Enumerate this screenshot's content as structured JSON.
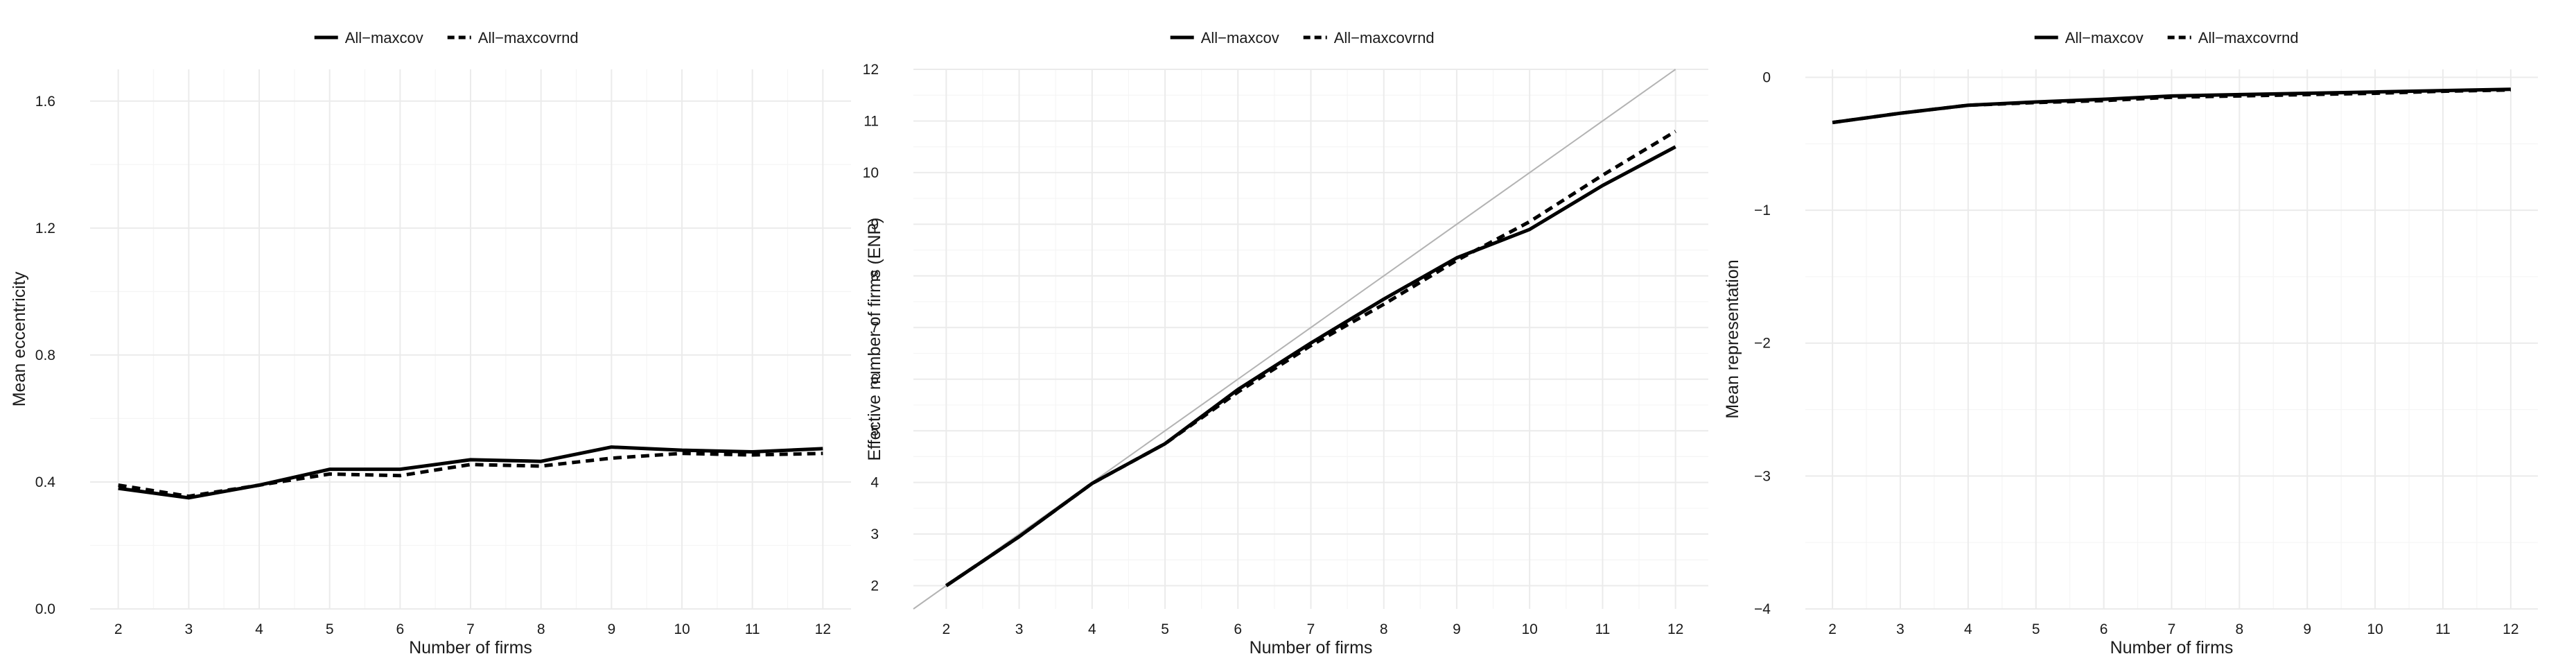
{
  "chart_data": [
    {
      "type": "line",
      "title": "",
      "xlabel": "Number of firms",
      "ylabel": "Mean eccentricity",
      "x": [
        2,
        3,
        4,
        5,
        6,
        7,
        8,
        9,
        10,
        11,
        12
      ],
      "xlim": [
        1.6,
        12.4
      ],
      "ylim": [
        0.0,
        1.7
      ],
      "xticks": [
        2,
        3,
        4,
        5,
        6,
        7,
        8,
        9,
        10,
        11,
        12
      ],
      "yticks": [
        0.0,
        0.4,
        0.8,
        1.2,
        1.6
      ],
      "ytick_labels": [
        "0.0",
        "0.4",
        "0.8",
        "1.2",
        "1.6"
      ],
      "grid": true,
      "legend_position": "top",
      "reference_line": false,
      "series": [
        {
          "name": "All−maxcov",
          "style": "solid",
          "color": "#000000",
          "values": [
            0.38,
            0.35,
            0.39,
            0.44,
            0.44,
            0.47,
            0.465,
            0.51,
            0.5,
            0.495,
            0.505
          ]
        },
        {
          "name": "All−maxcovrnd",
          "style": "dashed",
          "color": "#000000",
          "values": [
            0.39,
            0.355,
            0.39,
            0.425,
            0.42,
            0.455,
            0.45,
            0.475,
            0.49,
            0.485,
            0.49
          ]
        }
      ]
    },
    {
      "type": "line",
      "title": "",
      "xlabel": "Number of firms",
      "ylabel": "Effective number of firms (ENP)",
      "x": [
        2,
        3,
        4,
        5,
        6,
        7,
        8,
        9,
        10,
        11,
        12
      ],
      "xlim": [
        1.55,
        12.45
      ],
      "ylim": [
        1.55,
        12.0
      ],
      "xticks": [
        2,
        3,
        4,
        5,
        6,
        7,
        8,
        9,
        10,
        11,
        12
      ],
      "yticks": [
        2,
        3,
        4,
        5,
        6,
        7,
        8,
        9,
        10,
        11,
        12
      ],
      "ytick_labels": [
        "2",
        "3",
        "4",
        "5",
        "6",
        "7",
        "8",
        "9",
        "10",
        "11",
        "12"
      ],
      "grid": true,
      "legend_position": "top",
      "reference_line": true,
      "reference_color": "#b3b3b3",
      "series": [
        {
          "name": "All−maxcov",
          "style": "solid",
          "color": "#000000",
          "values": [
            2.0,
            2.95,
            3.98,
            4.75,
            5.8,
            6.7,
            7.55,
            8.35,
            8.9,
            9.75,
            10.5
          ]
        },
        {
          "name": "All−maxcovrnd",
          "style": "dashed",
          "color": "#000000",
          "values": [
            2.0,
            2.95,
            3.98,
            4.75,
            5.75,
            6.65,
            7.45,
            8.3,
            9.05,
            9.95,
            10.8
          ]
        }
      ]
    },
    {
      "type": "line",
      "title": "",
      "xlabel": "Number of firms",
      "ylabel": "Mean representation",
      "x": [
        2,
        3,
        4,
        5,
        6,
        7,
        8,
        9,
        10,
        11,
        12
      ],
      "xlim": [
        1.6,
        12.4
      ],
      "ylim": [
        -4.0,
        0.06
      ],
      "xticks": [
        2,
        3,
        4,
        5,
        6,
        7,
        8,
        9,
        10,
        11,
        12
      ],
      "yticks": [
        -4,
        -3,
        -2,
        -1,
        0
      ],
      "ytick_labels": [
        "−4",
        "−3",
        "−2",
        "−1",
        "0"
      ],
      "grid": true,
      "legend_position": "top",
      "reference_line": false,
      "series": [
        {
          "name": "All−maxcov",
          "style": "solid",
          "color": "#000000",
          "values": [
            -0.34,
            -0.27,
            -0.21,
            -0.185,
            -0.165,
            -0.14,
            -0.13,
            -0.12,
            -0.11,
            -0.1,
            -0.09
          ]
        },
        {
          "name": "All−maxcovrnd",
          "style": "dashed",
          "color": "#000000",
          "values": [
            -0.34,
            -0.27,
            -0.21,
            -0.19,
            -0.175,
            -0.15,
            -0.14,
            -0.13,
            -0.12,
            -0.105,
            -0.095
          ]
        }
      ]
    }
  ]
}
